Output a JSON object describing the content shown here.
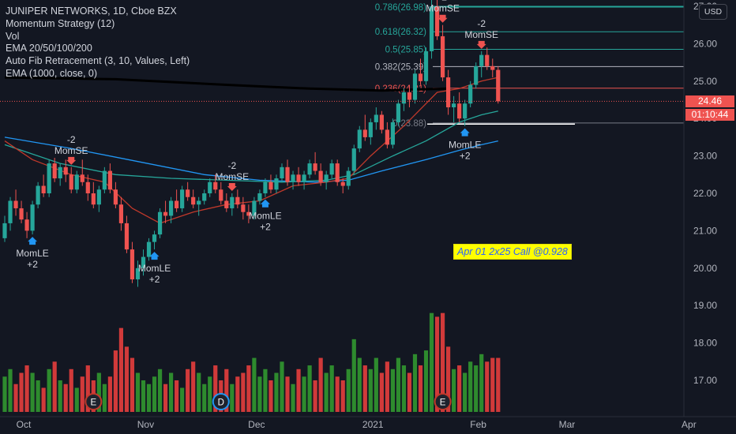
{
  "legend": {
    "symbol": "JUNIPER NETWORKS, 1D, Cboe BZX",
    "momentum": "Momentum Strategy (12)",
    "vol": "Vol",
    "ema_multi": "EMA 20/50/100/200",
    "auto_fib": "Auto Fib Retracement (3, 10, Values, Left)",
    "ema_1000": "EMA (1000, close, 0)"
  },
  "currency_button": "USD",
  "last_price": "24.46",
  "countdown": "01:10:44",
  "annotation": "Apr 01 2x25 Call @0.928",
  "colors": {
    "background": "#131722",
    "up": "#26a69a",
    "down": "#ef5350",
    "vol_up": "#2e8b2e",
    "vol_down": "#d13a3a",
    "ema20": "#c0392b",
    "ema50": "#26a69a",
    "ema100": "#2196f3",
    "ema200": "#2b3aa0",
    "ema1000": "#000000",
    "buy_arrow": "#2196f3",
    "sell_arrow": "#ef5350"
  },
  "chart_data": {
    "type": "candlestick",
    "ylim": [
      16.5,
      27.2
    ],
    "yticks": [
      "17.00",
      "18.00",
      "19.00",
      "20.00",
      "21.00",
      "22.00",
      "23.00",
      "24.00",
      "25.00",
      "26.00",
      "27.00"
    ],
    "xticks": [
      {
        "label": "Oct",
        "day": 0
      },
      {
        "label": "Nov",
        "day": 22
      },
      {
        "label": "Dec",
        "day": 42
      },
      {
        "label": "2021",
        "day": 63
      },
      {
        "label": "Feb",
        "day": 82
      },
      {
        "label": "Mar",
        "day": 98
      },
      {
        "label": "Apr",
        "day": 120
      }
    ],
    "candles": [
      [
        20.8,
        21.4,
        20.7,
        21.2
      ],
      [
        21.2,
        21.9,
        21.0,
        21.8
      ],
      [
        21.8,
        22.1,
        21.4,
        21.6
      ],
      [
        21.6,
        21.8,
        21.2,
        21.3
      ],
      [
        21.3,
        21.5,
        20.8,
        21.0
      ],
      [
        21.0,
        21.8,
        20.9,
        21.7
      ],
      [
        21.7,
        22.3,
        21.6,
        22.2
      ],
      [
        22.2,
        22.5,
        21.9,
        22.0
      ],
      [
        22.0,
        22.9,
        21.9,
        22.8
      ],
      [
        22.8,
        22.95,
        22.3,
        22.4
      ],
      [
        22.4,
        22.8,
        22.2,
        22.7
      ],
      [
        22.7,
        22.9,
        22.3,
        22.5
      ],
      [
        22.5,
        22.7,
        22.0,
        22.1
      ],
      [
        22.1,
        22.6,
        22.0,
        22.5
      ],
      [
        22.5,
        22.9,
        22.2,
        22.3
      ],
      [
        22.3,
        22.5,
        21.8,
        22.0
      ],
      [
        22.0,
        22.3,
        21.6,
        21.7
      ],
      [
        21.7,
        22.2,
        21.5,
        22.1
      ],
      [
        22.1,
        22.7,
        22.0,
        22.6
      ],
      [
        22.6,
        22.8,
        22.0,
        22.1
      ],
      [
        22.1,
        22.3,
        21.6,
        21.7
      ],
      [
        21.7,
        21.9,
        21.0,
        21.2
      ],
      [
        21.2,
        21.4,
        20.4,
        20.5
      ],
      [
        20.5,
        20.7,
        19.6,
        19.7
      ],
      [
        19.7,
        20.2,
        19.5,
        20.0
      ],
      [
        20.0,
        20.5,
        19.8,
        20.3
      ],
      [
        20.3,
        20.8,
        20.2,
        20.7
      ],
      [
        20.7,
        21.0,
        20.5,
        20.9
      ],
      [
        20.9,
        21.6,
        20.8,
        21.5
      ],
      [
        21.5,
        21.8,
        21.2,
        21.4
      ],
      [
        21.4,
        21.9,
        21.2,
        21.8
      ],
      [
        21.8,
        22.1,
        21.5,
        21.6
      ],
      [
        21.6,
        22.2,
        21.5,
        22.1
      ],
      [
        22.1,
        22.3,
        21.8,
        21.9
      ],
      [
        21.9,
        22.1,
        21.6,
        21.7
      ],
      [
        21.7,
        21.9,
        21.4,
        21.8
      ],
      [
        21.8,
        22.1,
        21.7,
        22.0
      ],
      [
        22.0,
        22.4,
        21.9,
        22.3
      ],
      [
        22.3,
        22.5,
        22.0,
        22.1
      ],
      [
        22.1,
        22.3,
        21.7,
        21.8
      ],
      [
        21.8,
        22.0,
        21.5,
        21.6
      ],
      [
        21.6,
        22.0,
        21.4,
        21.9
      ],
      [
        21.9,
        22.1,
        21.6,
        21.7
      ],
      [
        21.7,
        21.9,
        21.3,
        21.5
      ],
      [
        21.5,
        21.7,
        21.2,
        21.4
      ],
      [
        21.4,
        21.9,
        21.3,
        21.8
      ],
      [
        21.8,
        22.1,
        21.7,
        22.0
      ],
      [
        22.0,
        22.4,
        21.9,
        22.3
      ],
      [
        22.3,
        22.5,
        22.0,
        22.1
      ],
      [
        22.1,
        22.5,
        22.0,
        22.4
      ],
      [
        22.4,
        22.8,
        22.3,
        22.7
      ],
      [
        22.7,
        22.9,
        22.2,
        22.3
      ],
      [
        22.3,
        22.6,
        22.1,
        22.5
      ],
      [
        22.5,
        22.7,
        22.2,
        22.3
      ],
      [
        22.3,
        22.6,
        22.1,
        22.5
      ],
      [
        22.5,
        22.9,
        22.4,
        22.8
      ],
      [
        22.8,
        23.1,
        22.5,
        22.6
      ],
      [
        22.6,
        22.8,
        22.2,
        22.3
      ],
      [
        22.3,
        22.6,
        22.1,
        22.5
      ],
      [
        22.5,
        22.9,
        22.4,
        22.8
      ],
      [
        22.8,
        22.9,
        22.2,
        22.3
      ],
      [
        22.3,
        22.4,
        22.0,
        22.2
      ],
      [
        22.2,
        22.7,
        22.1,
        22.6
      ],
      [
        22.6,
        23.3,
        22.5,
        23.2
      ],
      [
        23.2,
        23.8,
        23.1,
        23.7
      ],
      [
        23.7,
        24.1,
        23.4,
        23.5
      ],
      [
        23.5,
        24.0,
        23.3,
        23.9
      ],
      [
        23.9,
        24.3,
        23.7,
        24.1
      ],
      [
        24.1,
        24.2,
        23.6,
        23.7
      ],
      [
        23.7,
        23.9,
        23.2,
        23.3
      ],
      [
        23.3,
        24.0,
        23.2,
        23.9
      ],
      [
        23.9,
        24.5,
        23.8,
        24.4
      ],
      [
        24.4,
        24.8,
        24.2,
        24.7
      ],
      [
        24.7,
        24.9,
        24.3,
        24.5
      ],
      [
        24.5,
        25.3,
        24.4,
        25.2
      ],
      [
        25.2,
        25.6,
        24.9,
        25.0
      ],
      [
        25.0,
        25.9,
        24.9,
        25.8
      ],
      [
        25.8,
        27.2,
        25.6,
        27.0
      ],
      [
        27.0,
        27.3,
        26.1,
        26.2
      ],
      [
        26.2,
        26.5,
        25.0,
        25.1
      ],
      [
        25.1,
        25.3,
        24.1,
        24.3
      ],
      [
        24.3,
        24.6,
        23.9,
        24.4
      ],
      [
        24.4,
        24.7,
        23.9,
        24.0
      ],
      [
        24.0,
        24.5,
        23.8,
        24.4
      ],
      [
        24.4,
        25.0,
        24.3,
        24.9
      ],
      [
        24.9,
        25.5,
        24.8,
        25.4
      ],
      [
        25.4,
        25.8,
        25.1,
        25.7
      ],
      [
        25.7,
        25.9,
        25.3,
        25.4
      ],
      [
        25.4,
        25.6,
        25.1,
        25.3
      ],
      [
        25.3,
        25.4,
        24.4,
        24.46
      ]
    ],
    "volume": [
      [
        17.1,
        1
      ],
      [
        17.3,
        1
      ],
      [
        16.9,
        0
      ],
      [
        17.2,
        0
      ],
      [
        17.4,
        0
      ],
      [
        17.2,
        1
      ],
      [
        17.0,
        1
      ],
      [
        16.8,
        0
      ],
      [
        17.3,
        1
      ],
      [
        17.5,
        0
      ],
      [
        17.0,
        1
      ],
      [
        16.9,
        0
      ],
      [
        17.3,
        0
      ],
      [
        16.8,
        1
      ],
      [
        17.1,
        0
      ],
      [
        17.4,
        0
      ],
      [
        17.0,
        0
      ],
      [
        17.2,
        1
      ],
      [
        16.9,
        1
      ],
      [
        17.1,
        0
      ],
      [
        17.8,
        0
      ],
      [
        18.4,
        0
      ],
      [
        17.9,
        0
      ],
      [
        17.6,
        0
      ],
      [
        17.2,
        1
      ],
      [
        17.0,
        1
      ],
      [
        16.9,
        1
      ],
      [
        17.1,
        1
      ],
      [
        17.3,
        1
      ],
      [
        16.9,
        0
      ],
      [
        17.2,
        1
      ],
      [
        17.0,
        0
      ],
      [
        16.8,
        1
      ],
      [
        17.3,
        0
      ],
      [
        17.5,
        0
      ],
      [
        17.2,
        1
      ],
      [
        16.9,
        1
      ],
      [
        17.1,
        1
      ],
      [
        17.4,
        0
      ],
      [
        17.0,
        0
      ],
      [
        17.3,
        0
      ],
      [
        16.9,
        1
      ],
      [
        17.1,
        0
      ],
      [
        17.2,
        0
      ],
      [
        17.4,
        0
      ],
      [
        17.6,
        1
      ],
      [
        17.1,
        1
      ],
      [
        17.3,
        1
      ],
      [
        17.0,
        0
      ],
      [
        17.2,
        1
      ],
      [
        17.5,
        1
      ],
      [
        17.1,
        0
      ],
      [
        16.9,
        1
      ],
      [
        17.3,
        0
      ],
      [
        17.1,
        1
      ],
      [
        17.4,
        1
      ],
      [
        17.0,
        0
      ],
      [
        17.6,
        0
      ],
      [
        17.2,
        1
      ],
      [
        17.4,
        1
      ],
      [
        17.1,
        0
      ],
      [
        17.0,
        0
      ],
      [
        17.3,
        1
      ],
      [
        18.1,
        1
      ],
      [
        17.6,
        1
      ],
      [
        17.4,
        0
      ],
      [
        17.3,
        1
      ],
      [
        17.6,
        1
      ],
      [
        17.2,
        0
      ],
      [
        17.5,
        0
      ],
      [
        17.3,
        1
      ],
      [
        17.6,
        1
      ],
      [
        17.4,
        1
      ],
      [
        17.2,
        0
      ],
      [
        17.7,
        1
      ],
      [
        17.4,
        0
      ],
      [
        17.8,
        1
      ],
      [
        18.8,
        1
      ],
      [
        18.7,
        0
      ],
      [
        18.8,
        0
      ],
      [
        17.9,
        0
      ],
      [
        17.3,
        1
      ],
      [
        17.4,
        0
      ],
      [
        17.2,
        1
      ],
      [
        17.5,
        1
      ],
      [
        17.4,
        1
      ],
      [
        17.7,
        1
      ],
      [
        17.5,
        0
      ],
      [
        17.6,
        0
      ],
      [
        17.6,
        0
      ]
    ],
    "ema20": [
      [
        0,
        23.4
      ],
      [
        5,
        22.9
      ],
      [
        12,
        22.5
      ],
      [
        18,
        22.3
      ],
      [
        23,
        21.6
      ],
      [
        28,
        21.2
      ],
      [
        34,
        21.5
      ],
      [
        40,
        21.7
      ],
      [
        46,
        21.8
      ],
      [
        52,
        22.2
      ],
      [
        58,
        22.3
      ],
      [
        62,
        22.4
      ],
      [
        66,
        23.0
      ],
      [
        72,
        23.8
      ],
      [
        78,
        24.7
      ],
      [
        82,
        24.8
      ],
      [
        86,
        25.0
      ],
      [
        89,
        25.1
      ]
    ],
    "ema50": [
      [
        0,
        23.3
      ],
      [
        10,
        22.8
      ],
      [
        20,
        22.5
      ],
      [
        30,
        22.4
      ],
      [
        40,
        22.35
      ],
      [
        50,
        22.3
      ],
      [
        58,
        22.35
      ],
      [
        63,
        22.5
      ],
      [
        70,
        23.0
      ],
      [
        76,
        23.4
      ],
      [
        82,
        23.9
      ],
      [
        86,
        24.1
      ],
      [
        89,
        24.2
      ]
    ],
    "ema100": [
      [
        0,
        23.5
      ],
      [
        12,
        23.2
      ],
      [
        24,
        22.85
      ],
      [
        36,
        22.5
      ],
      [
        46,
        22.35
      ],
      [
        56,
        22.3
      ],
      [
        62,
        22.35
      ],
      [
        68,
        22.6
      ],
      [
        76,
        22.9
      ],
      [
        82,
        23.15
      ],
      [
        86,
        23.3
      ],
      [
        89,
        23.4
      ]
    ],
    "ema1000": [
      [
        0,
        25.1
      ],
      [
        20,
        25.05
      ],
      [
        40,
        24.9
      ],
      [
        55,
        24.8
      ],
      [
        68,
        24.75
      ],
      [
        80,
        24.8
      ]
    ],
    "fib_levels": [
      {
        "label": "0.786(26.98)",
        "value": 26.98,
        "color": "#26a69a"
      },
      {
        "label": "0.618(26.32)",
        "value": 26.32,
        "color": "#26a69a"
      },
      {
        "label": "0.5(25.85)",
        "value": 25.85,
        "color": "#26a69a"
      },
      {
        "label": "0.382(25.39)",
        "value": 25.39,
        "color": "#b2b5be"
      },
      {
        "label": "0.236(24.81)",
        "value": 24.81,
        "color": "#ef5350"
      },
      {
        "label": "0(23.88)",
        "value": 23.88,
        "color": "#787b86"
      }
    ],
    "fib_upper_line": 27.0,
    "fib_bottom_white": 23.85,
    "signals": [
      {
        "day": 12,
        "type": "short",
        "label1": "-2",
        "label2": "MomSE"
      },
      {
        "day": 5,
        "type": "long",
        "label1": "MomLE",
        "label2": "+2"
      },
      {
        "day": 27,
        "type": "long",
        "label1": "MomLE",
        "label2": "+2"
      },
      {
        "day": 41,
        "type": "short",
        "label1": "-2",
        "label2": "MomSE"
      },
      {
        "day": 47,
        "type": "long",
        "label1": "MomLE",
        "label2": "+2"
      },
      {
        "day": 86,
        "type": "short",
        "label1": "-2",
        "label2": "MomSE"
      },
      {
        "day": 79,
        "type": "short",
        "label1": "-2",
        "label2": "MomSE"
      },
      {
        "day": 83,
        "type": "long",
        "label1": "MomLE",
        "label2": "+2"
      }
    ],
    "events": [
      {
        "day": 16,
        "label": "E",
        "color": "#c0392b"
      },
      {
        "day": 39,
        "label": "D",
        "color": "#2196f3"
      },
      {
        "day": 79,
        "label": "E",
        "color": "#c0392b"
      }
    ]
  }
}
